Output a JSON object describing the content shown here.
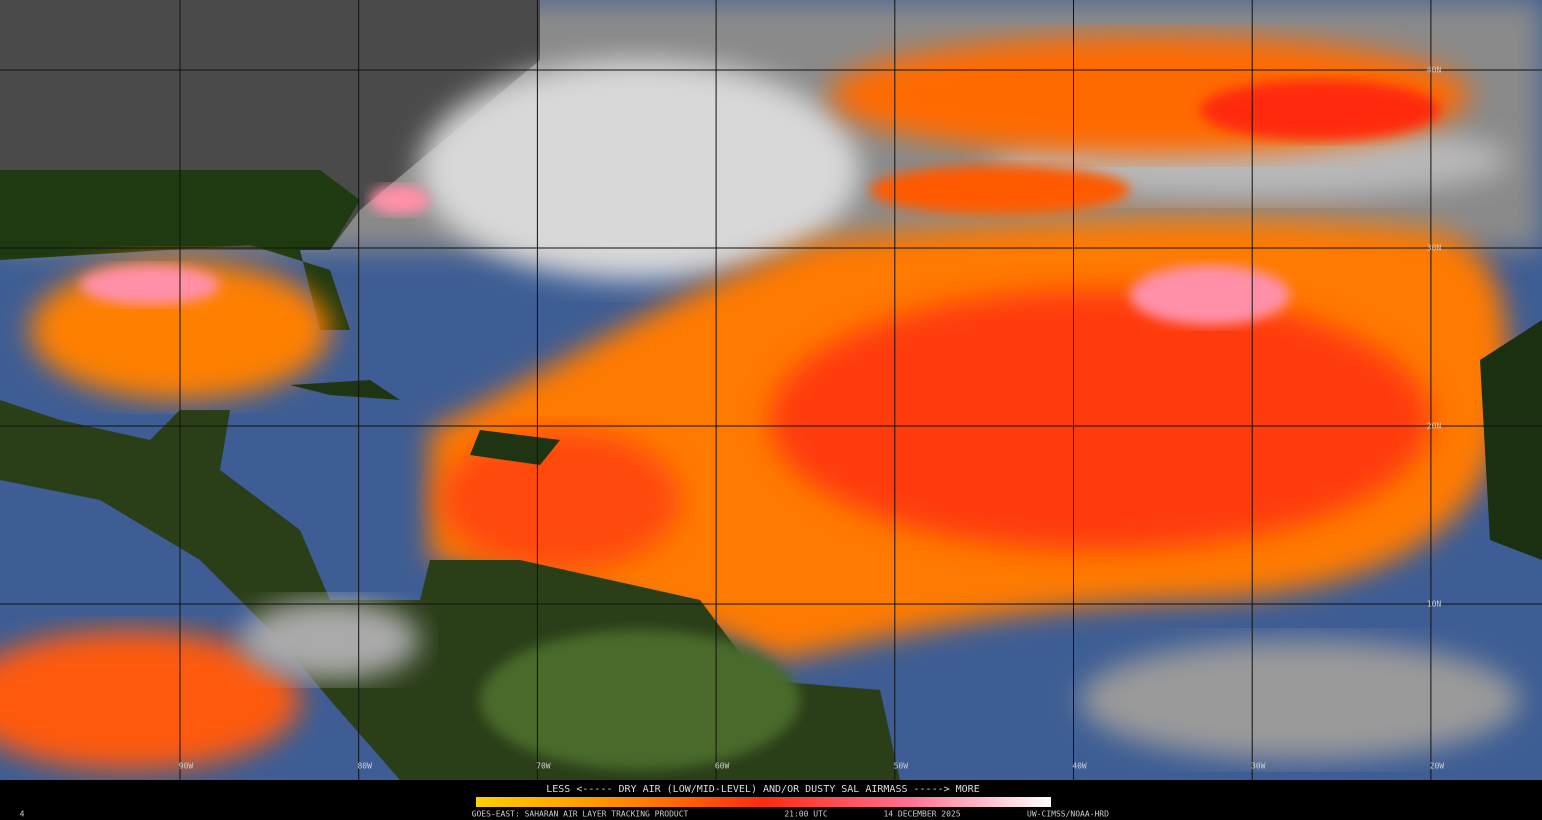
{
  "legend": {
    "caption": "LESS <----- DRY AIR (LOW/MID-LEVEL) AND/OR DUSTY SAL AIRMASS -----> MORE",
    "product": "GOES-EAST: SAHARAN AIR LAYER TRACKING PRODUCT",
    "time": "21:00 UTC",
    "date": "14 DECEMBER 2025",
    "credit": "UW-CIMSS/NOAA-HRD"
  },
  "grid": {
    "lat_labels": [
      "40N",
      "30N",
      "20N",
      "10N"
    ],
    "lon_labels": [
      "90W",
      "80W",
      "70W",
      "60W",
      "50W",
      "40W",
      "30W",
      "20W"
    ]
  },
  "corner_mark": "4"
}
